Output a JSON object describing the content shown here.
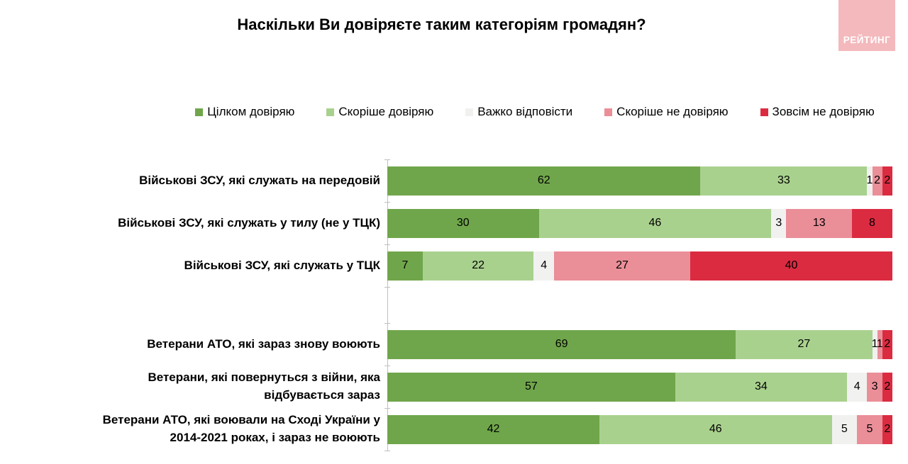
{
  "title": "Наскільки Ви довіряєте таким категоріям громадян?",
  "logo": {
    "text": "РЕЙТИНГ",
    "bg_color": "#f4b9bd",
    "text_color": "#ffffff"
  },
  "chart_data": {
    "type": "bar",
    "stacked": true,
    "orientation": "horizontal",
    "title": "Наскільки Ви довіряєте таким категоріям громадян?",
    "xlim": [
      0,
      100
    ],
    "legend_position": "top",
    "value_labels": true,
    "grid": false,
    "axis_color": "#bfbfbf",
    "categories": [
      "Військові ЗСУ, які служать на передовій",
      "Військові ЗСУ, які служать у тилу (не у ТЦК)",
      "Військові ЗСУ, які служать у ТЦК",
      "Ветерани АТО, які зараз знову воюють",
      "Ветерани, які повернуться з війни, яка відбувається зараз",
      "Ветерани АТО, які воювали на Сході України у 2014-2021 роках, і зараз не воюють"
    ],
    "gap_after_index": 2,
    "series": [
      {
        "name": "Цілком довіряю",
        "color": "#70a64b",
        "values": [
          62,
          30,
          7,
          69,
          57,
          42
        ]
      },
      {
        "name": "Скоріше довіряю",
        "color": "#a9d18e",
        "values": [
          33,
          46,
          22,
          27,
          34,
          46
        ]
      },
      {
        "name": "Важко відповісти",
        "color": "#f1f1f0",
        "values": [
          1,
          3,
          4,
          1,
          4,
          5
        ]
      },
      {
        "name": "Скоріше не довіряю",
        "color": "#ea8e98",
        "values": [
          2,
          13,
          27,
          1,
          3,
          5
        ]
      },
      {
        "name": "Зовсім не довіряю",
        "color": "#db2b41",
        "values": [
          2,
          8,
          40,
          2,
          2,
          2
        ]
      }
    ]
  }
}
